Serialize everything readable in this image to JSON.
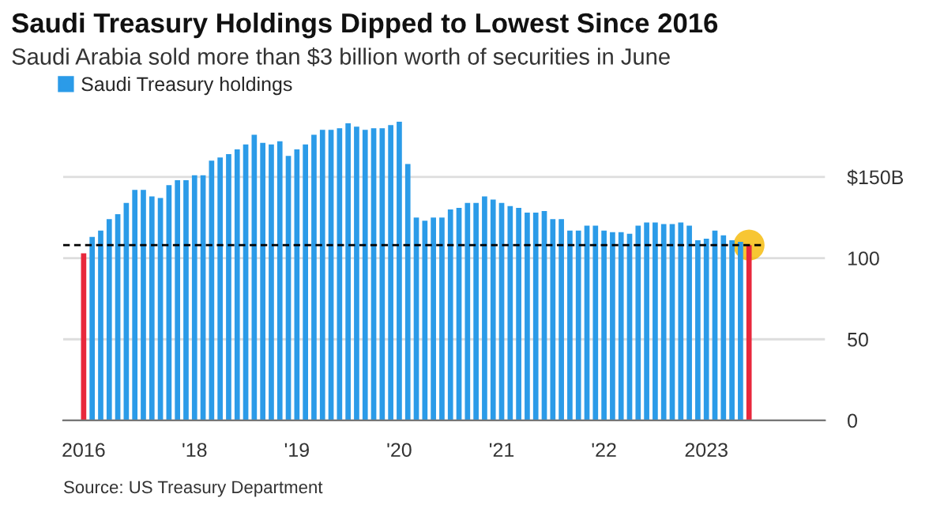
{
  "chart_data": {
    "type": "bar",
    "title": "Saudi Treasury Holdings Dipped to Lowest Since 2016",
    "subtitle": "Saudi Arabia sold more than $3 billion worth of securities in June",
    "categories": [
      "2016",
      null,
      null,
      null,
      null,
      null,
      null,
      null,
      null,
      null,
      null,
      null,
      null,
      "'18",
      null,
      null,
      null,
      null,
      null,
      null,
      null,
      null,
      null,
      null,
      null,
      "'19",
      null,
      null,
      null,
      null,
      null,
      null,
      null,
      null,
      null,
      null,
      null,
      "'20",
      null,
      null,
      null,
      null,
      null,
      null,
      null,
      null,
      null,
      null,
      null,
      "'21",
      null,
      null,
      null,
      null,
      null,
      null,
      null,
      null,
      null,
      null,
      null,
      "'22",
      null,
      null,
      null,
      null,
      null,
      null,
      null,
      null,
      null,
      null,
      null,
      "2023",
      null,
      null,
      null,
      null,
      null
    ],
    "series": [
      {
        "name": "Saudi Treasury holdings",
        "color": "#2b9be8",
        "values": [
          103,
          113,
          117,
          124,
          127,
          134,
          142,
          142,
          138,
          137,
          145,
          148,
          148,
          151,
          151,
          160,
          162,
          164,
          167,
          170,
          176,
          171,
          170,
          172,
          163,
          167,
          170,
          176,
          179,
          179,
          180,
          183,
          181,
          179,
          180,
          180,
          182,
          184,
          158,
          125,
          123,
          125,
          125,
          130,
          131,
          134,
          134,
          138,
          136,
          134,
          132,
          131,
          128,
          128,
          129,
          124,
          124,
          117,
          117,
          120,
          120,
          117,
          116,
          116,
          115,
          120,
          122,
          122,
          121,
          121,
          122,
          120,
          111,
          112,
          117,
          114,
          111,
          110,
          108
        ],
        "colors": [
          "#e8283c",
          "#2b9be8",
          "#2b9be8",
          "#2b9be8",
          "#2b9be8",
          "#2b9be8",
          "#2b9be8",
          "#2b9be8",
          "#2b9be8",
          "#2b9be8",
          "#2b9be8",
          "#2b9be8",
          "#2b9be8",
          "#2b9be8",
          "#2b9be8",
          "#2b9be8",
          "#2b9be8",
          "#2b9be8",
          "#2b9be8",
          "#2b9be8",
          "#2b9be8",
          "#2b9be8",
          "#2b9be8",
          "#2b9be8",
          "#2b9be8",
          "#2b9be8",
          "#2b9be8",
          "#2b9be8",
          "#2b9be8",
          "#2b9be8",
          "#2b9be8",
          "#2b9be8",
          "#2b9be8",
          "#2b9be8",
          "#2b9be8",
          "#2b9be8",
          "#2b9be8",
          "#2b9be8",
          "#2b9be8",
          "#2b9be8",
          "#2b9be8",
          "#2b9be8",
          "#2b9be8",
          "#2b9be8",
          "#2b9be8",
          "#2b9be8",
          "#2b9be8",
          "#2b9be8",
          "#2b9be8",
          "#2b9be8",
          "#2b9be8",
          "#2b9be8",
          "#2b9be8",
          "#2b9be8",
          "#2b9be8",
          "#2b9be8",
          "#2b9be8",
          "#2b9be8",
          "#2b9be8",
          "#2b9be8",
          "#2b9be8",
          "#2b9be8",
          "#2b9be8",
          "#2b9be8",
          "#2b9be8",
          "#2b9be8",
          "#2b9be8",
          "#2b9be8",
          "#2b9be8",
          "#2b9be8",
          "#2b9be8",
          "#2b9be8",
          "#2b9be8",
          "#2b9be8",
          "#2b9be8",
          "#2b9be8",
          "#2b9be8",
          "#2b9be8",
          "#e8283c"
        ]
      }
    ],
    "ylim": [
      0,
      185
    ],
    "yticks": [
      0,
      50,
      100,
      {
        "value": 150,
        "label": "$150B"
      }
    ],
    "grid": "y",
    "legend": "top left",
    "ref_lines": [
      {
        "axis": "y",
        "value": 108,
        "color": "#000000",
        "line_style": "dashed"
      }
    ],
    "annotations": [
      "Source: US Treasury Department"
    ]
  }
}
